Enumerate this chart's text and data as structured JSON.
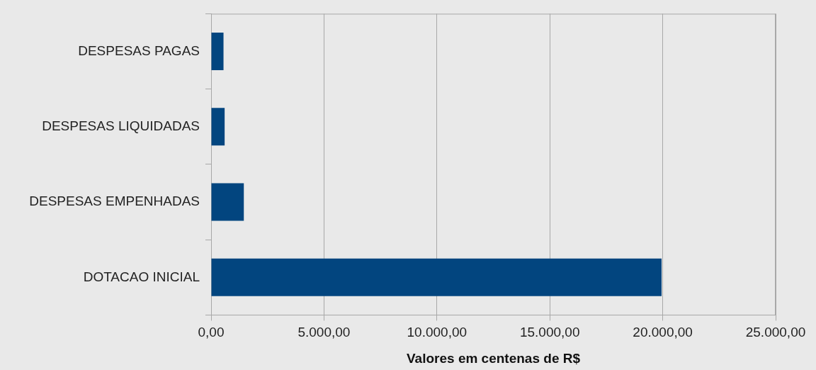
{
  "chart_data": {
    "type": "bar",
    "orientation": "horizontal",
    "xlabel": "Valores em centenas de R$",
    "categories": [
      "DESPESAS PAGAS",
      "DESPESAS LIQUIDADAS",
      "DESPESAS EMPENHADAS",
      "DOTACAO INICIAL"
    ],
    "values": [
      550,
      600,
      1450,
      19950
    ],
    "color": "#02457f",
    "xlim": [
      0,
      25000
    ],
    "xticks": [
      {
        "value": 0,
        "label": "0,00"
      },
      {
        "value": 5000,
        "label": "5.000,00"
      },
      {
        "value": 10000,
        "label": "10.000,00"
      },
      {
        "value": 15000,
        "label": "15.000,00"
      },
      {
        "value": 20000,
        "label": "20.000,00"
      },
      {
        "value": 25000,
        "label": "25.000,00"
      }
    ],
    "grid": "x",
    "legend": false
  }
}
